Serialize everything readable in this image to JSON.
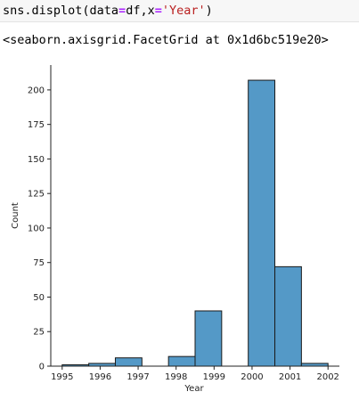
{
  "cell": {
    "code_parts": [
      "sns.displot(data",
      "=",
      "df,x",
      "=",
      "'Year'",
      ")"
    ],
    "output": "<seaborn.axisgrid.FacetGrid at 0x1d6bc519e20>"
  },
  "chart_data": {
    "type": "bar",
    "title": "",
    "xlabel": "Year",
    "ylabel": "Count",
    "xlim": [
      1994.7,
      2002.3
    ],
    "ylim": [
      0,
      218
    ],
    "x_ticks": [
      1995,
      1996,
      1997,
      1998,
      1999,
      2000,
      2001,
      2002
    ],
    "y_ticks": [
      0,
      25,
      50,
      75,
      100,
      125,
      150,
      175,
      200
    ],
    "bins": [
      {
        "start": 1995.0,
        "end": 1995.7,
        "count": 1
      },
      {
        "start": 1995.7,
        "end": 1996.4,
        "count": 2
      },
      {
        "start": 1996.4,
        "end": 1997.1,
        "count": 6
      },
      {
        "start": 1997.1,
        "end": 1997.8,
        "count": 0
      },
      {
        "start": 1997.8,
        "end": 1998.5,
        "count": 7
      },
      {
        "start": 1998.5,
        "end": 1999.2,
        "count": 40
      },
      {
        "start": 1999.2,
        "end": 1999.9,
        "count": 0
      },
      {
        "start": 1999.9,
        "end": 2000.6,
        "count": 207
      },
      {
        "start": 2000.6,
        "end": 2001.3,
        "count": 72
      },
      {
        "start": 2001.3,
        "end": 2002.0,
        "count": 2
      }
    ],
    "bar_color": "#5499c7",
    "edge_color": "#1a1a1a",
    "grid": false
  }
}
